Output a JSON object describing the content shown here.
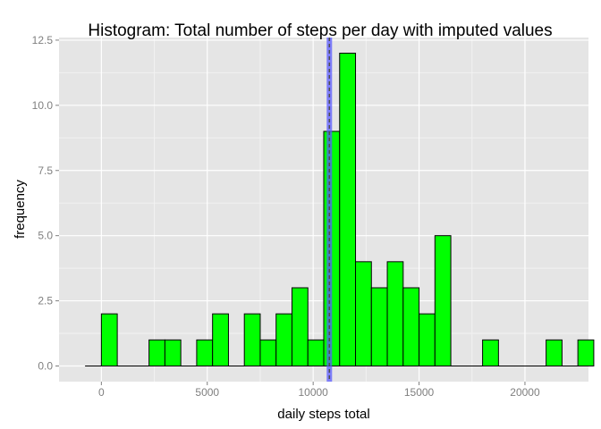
{
  "chart_data": {
    "type": "bar",
    "title": "Histogram: Total number of steps per day with imputed values",
    "xlabel": "daily steps total",
    "ylabel": "frequency",
    "xlim": [
      -2000,
      23000
    ],
    "ylim": [
      -0.6,
      12.6
    ],
    "xticks": [
      0,
      5000,
      10000,
      15000,
      20000
    ],
    "xtick_labels": [
      "0",
      "5000",
      "10000",
      "15000",
      "20000"
    ],
    "yticks": [
      0,
      2.5,
      5,
      7.5,
      10,
      12.5
    ],
    "ytick_labels": [
      "0.0",
      "2.5",
      "5.0",
      "7.5",
      "10.0",
      "12.5"
    ],
    "bin_width": 750,
    "bin_start": -750,
    "counts": [
      0,
      2,
      0,
      0,
      1,
      1,
      0,
      1,
      2,
      0,
      2,
      1,
      2,
      3,
      1,
      9,
      12,
      4,
      3,
      4,
      3,
      2,
      5,
      0,
      0,
      1,
      0,
      0,
      0,
      1,
      0,
      1
    ],
    "reference_lines": [
      {
        "type": "mean",
        "x": 10766
      },
      {
        "type": "median",
        "x": 10766
      }
    ],
    "grid": true,
    "legend": "none",
    "colors": {
      "bar_fill": "#00ff00",
      "bar_stroke": "#000000",
      "panel_bg": "#e5e5e5",
      "grid_major": "#ffffff",
      "grid_minor": "#f2f2f2",
      "mean_line": "#5a5aff",
      "median_line": "#4d4d4d"
    }
  }
}
